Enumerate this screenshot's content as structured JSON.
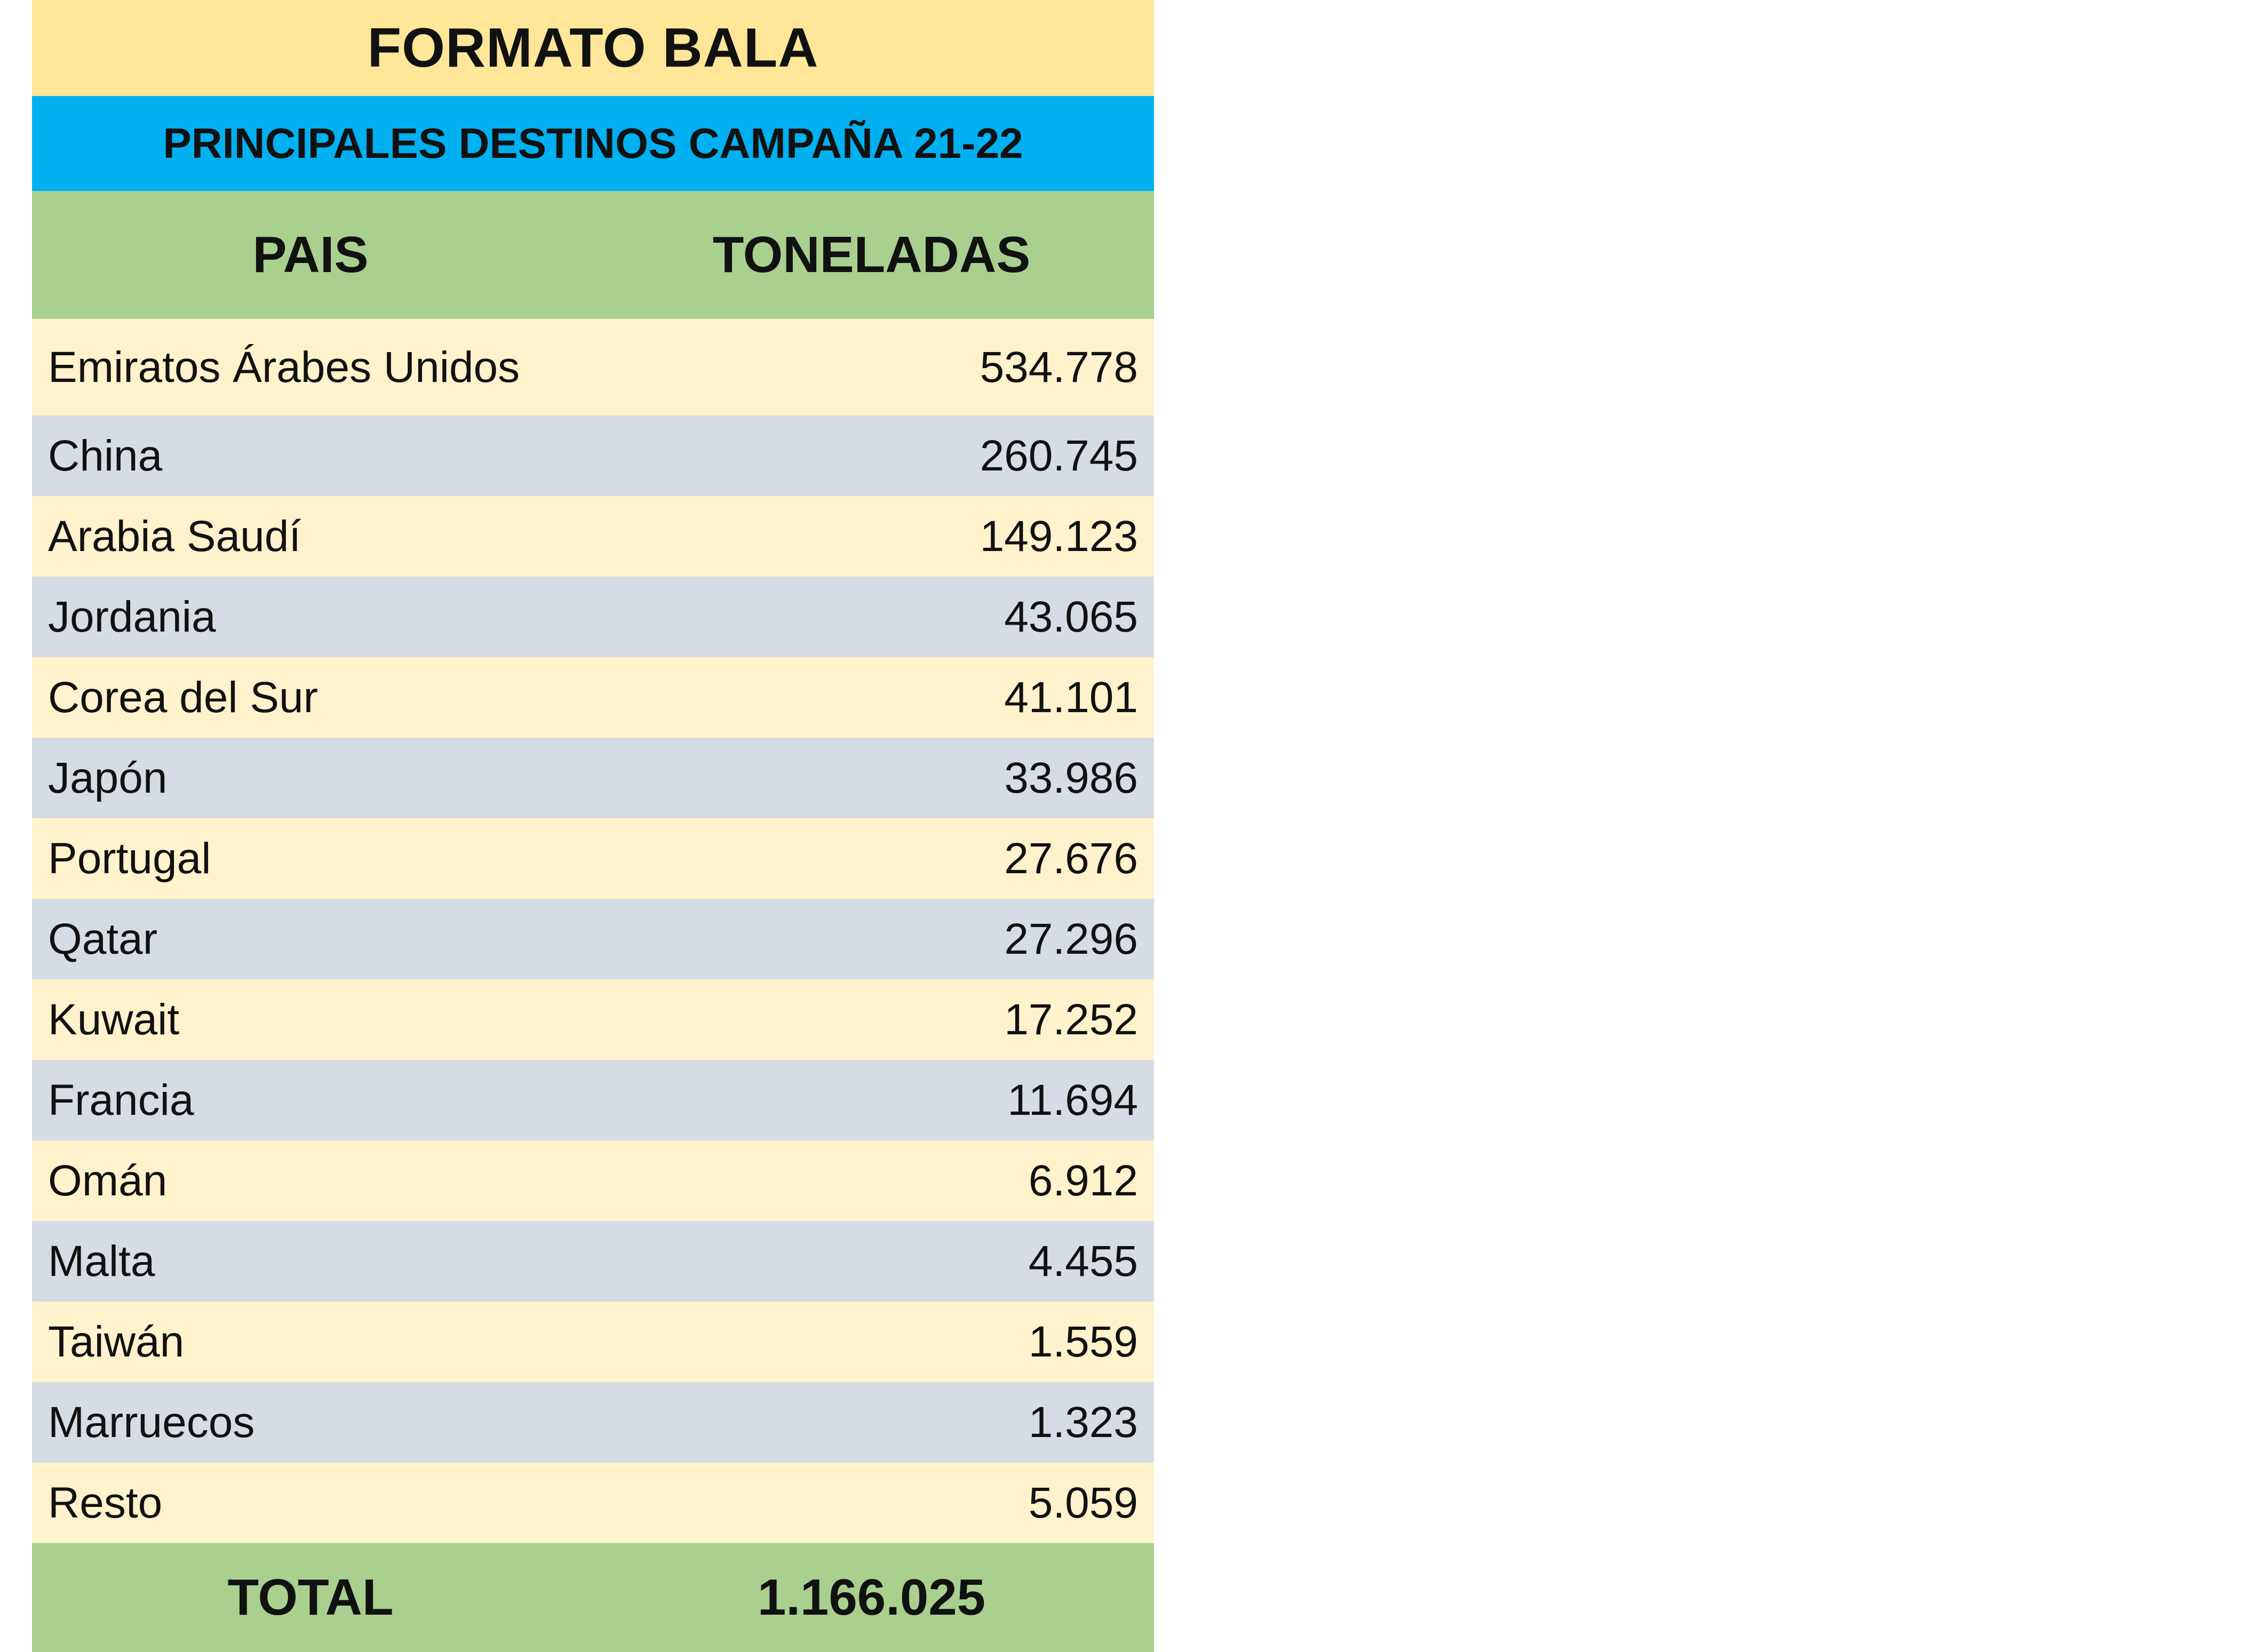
{
  "title": "FORMATO BALA",
  "subtitle": "PRINCIPALES DESTINOS CAMPAÑA 21-22",
  "columns": {
    "country": "PAIS",
    "tons": "TONELADAS"
  },
  "rows": [
    {
      "country": "Emiratos Árabes Unidos",
      "tons": "534.778"
    },
    {
      "country": "China",
      "tons": "260.745"
    },
    {
      "country": "Arabia Saudí",
      "tons": "149.123"
    },
    {
      "country": "Jordania",
      "tons": "43.065"
    },
    {
      "country": "Corea del Sur",
      "tons": "41.101"
    },
    {
      "country": "Japón",
      "tons": "33.986"
    },
    {
      "country": "Portugal",
      "tons": "27.676"
    },
    {
      "country": "Qatar",
      "tons": "27.296"
    },
    {
      "country": "Kuwait",
      "tons": "17.252"
    },
    {
      "country": "Francia",
      "tons": "11.694"
    },
    {
      "country": "Omán",
      "tons": "6.912"
    },
    {
      "country": "Malta",
      "tons": "4.455"
    },
    {
      "country": "Taiwán",
      "tons": "1.559"
    },
    {
      "country": "Marruecos",
      "tons": "1.323"
    },
    {
      "country": "Resto",
      "tons": "5.059"
    }
  ],
  "total": {
    "label": "TOTAL",
    "value": "1.166.025"
  },
  "colors": {
    "title_bg": "#ffe699",
    "subtitle_bg": "#00b0f0",
    "header_bg": "#a9d08e",
    "row_odd_bg": "#fff2cc",
    "row_even_bg": "#d6dce4"
  }
}
